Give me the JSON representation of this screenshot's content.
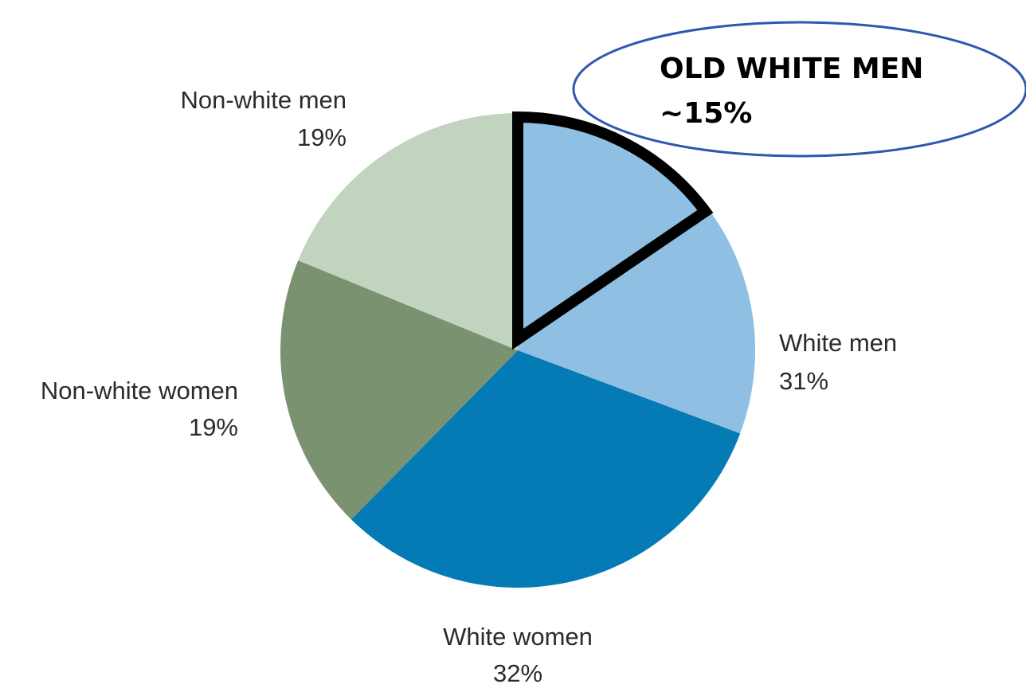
{
  "chart_data": {
    "type": "pie",
    "slices": [
      {
        "name": "White men",
        "value": 31,
        "label": "White men",
        "pct_label": "31%",
        "color": "#8fc0e3"
      },
      {
        "name": "White women",
        "value": 32,
        "label": "White women",
        "pct_label": "32%",
        "color": "#057bb6"
      },
      {
        "name": "Non-white women",
        "value": 19,
        "label": "Non-white women",
        "pct_label": "19%",
        "color": "#7a926f"
      },
      {
        "name": "Non-white men",
        "value": 19,
        "label": "Non-white men",
        "pct_label": "19%",
        "color": "#c2d4bf"
      }
    ],
    "start": "12 o'clock",
    "direction": "clockwise",
    "annotation": {
      "line1": "OLD WHITE MEN",
      "line2": "~15%",
      "highlight_value": 15,
      "highlight_of": "White men",
      "outline_color": "#000000",
      "ellipse_color": "#2f57b0"
    }
  }
}
